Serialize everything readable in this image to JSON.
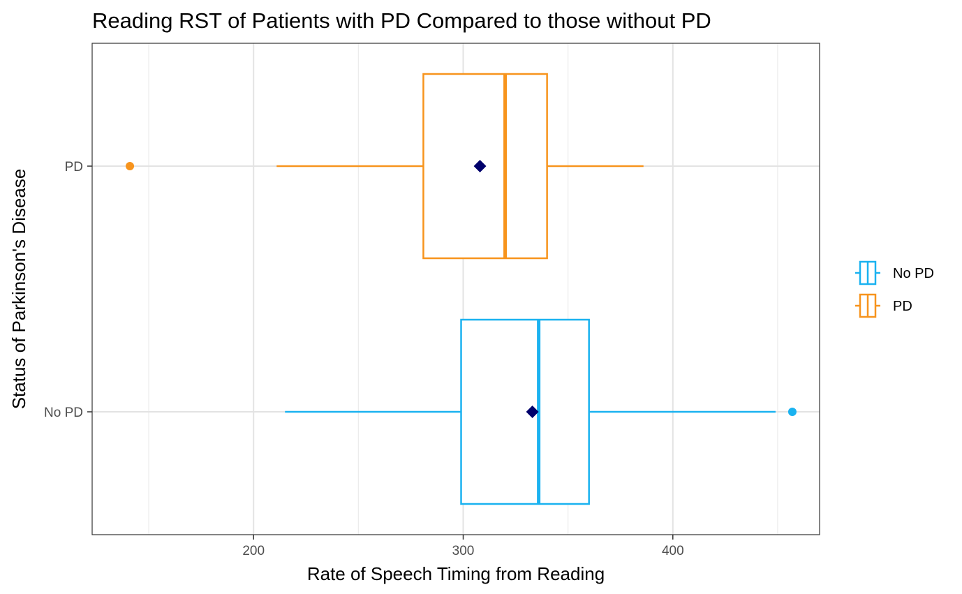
{
  "chart_data": {
    "type": "boxplot",
    "orientation": "horizontal",
    "title": "Reading RST of Patients with PD Compared to those without PD",
    "xlabel": "Rate of Speech Timing from Reading",
    "ylabel": "Status of Parkinson's Disease",
    "xlim": [
      123,
      470
    ],
    "x_ticks": [
      200,
      300,
      400
    ],
    "x_minor_ticks": [
      150,
      250,
      350,
      450
    ],
    "grid": true,
    "legend_position": "right",
    "categories": [
      "PD",
      "No PD"
    ],
    "series": [
      {
        "name": "PD",
        "color": "#f7941d",
        "whisker_low": 211,
        "q1": 281,
        "median": 320,
        "q3": 340,
        "whisker_high": 386,
        "outliers": [
          141
        ],
        "mean": 308
      },
      {
        "name": "No PD",
        "color": "#1ab2f0",
        "whisker_low": 215,
        "q1": 299,
        "median": 336,
        "q3": 360,
        "whisker_high": 449,
        "outliers": [
          457
        ],
        "mean": 333
      }
    ],
    "mean_marker_color": "#00006b",
    "legend": [
      {
        "label": "No PD",
        "color": "#1ab2f0"
      },
      {
        "label": "PD",
        "color": "#f7941d"
      }
    ]
  }
}
